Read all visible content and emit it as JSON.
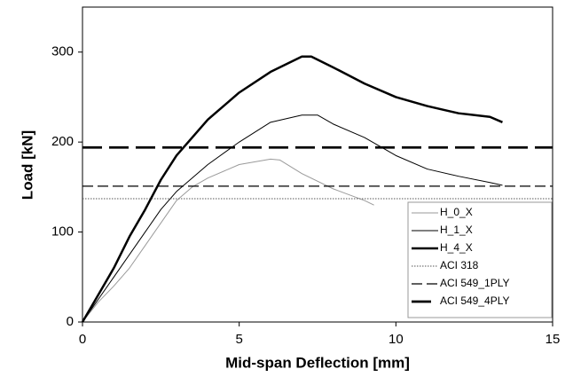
{
  "chart_data": {
    "type": "line",
    "x_label": "Mid-span Deflection [mm]",
    "y_label": "Load [kN]",
    "xlim": [
      0,
      15
    ],
    "xticks": [
      0,
      5,
      10,
      15
    ],
    "ylim": [
      0,
      350
    ],
    "yticks": [
      0,
      100,
      200,
      300
    ],
    "legend": "lower right",
    "series": [
      {
        "name": "H_0_X",
        "color": "#9a9a9a",
        "style": "solid",
        "width": 1,
        "x": [
          0,
          0.5,
          1,
          1.5,
          2,
          2.5,
          3,
          3.5,
          4,
          5,
          6,
          6.3,
          7,
          8,
          9,
          9.3
        ],
        "values": [
          0,
          22,
          40,
          60,
          85,
          110,
          135,
          150,
          160,
          175,
          181,
          180,
          165,
          148,
          135,
          130
        ]
      },
      {
        "name": "H_1_X",
        "color": "#000000",
        "style": "solid",
        "width": 1,
        "x": [
          0,
          0.5,
          1,
          1.5,
          2,
          2.5,
          3,
          4,
          5,
          6,
          7,
          7.5,
          8,
          9,
          10,
          11,
          12,
          13,
          13.4
        ],
        "values": [
          0,
          25,
          50,
          75,
          100,
          125,
          145,
          175,
          200,
          222,
          230,
          230,
          220,
          205,
          185,
          170,
          162,
          155,
          152
        ]
      },
      {
        "name": "H_4_X",
        "color": "#000000",
        "style": "solid",
        "width": 2.5,
        "x": [
          0,
          0.5,
          1,
          1.5,
          2,
          2.5,
          3,
          4,
          5,
          6,
          7,
          7.3,
          8,
          9,
          10,
          11,
          12,
          13,
          13.4
        ],
        "values": [
          0,
          30,
          60,
          95,
          125,
          158,
          185,
          225,
          255,
          278,
          295,
          295,
          283,
          265,
          250,
          240,
          232,
          228,
          222
        ]
      },
      {
        "name": "ACI 318",
        "color": "#555555",
        "style": "dotted",
        "width": 1,
        "x": [
          0,
          15
        ],
        "values": [
          137,
          137
        ]
      },
      {
        "name": "ACI 549_1PLY",
        "color": "#000000",
        "style": "dashed",
        "width": 1.2,
        "x": [
          0,
          15
        ],
        "values": [
          151,
          151
        ]
      },
      {
        "name": "ACI 549_4PLY",
        "color": "#000000",
        "style": "dashed",
        "width": 2.8,
        "x": [
          0,
          15
        ],
        "values": [
          194,
          194
        ]
      }
    ]
  }
}
